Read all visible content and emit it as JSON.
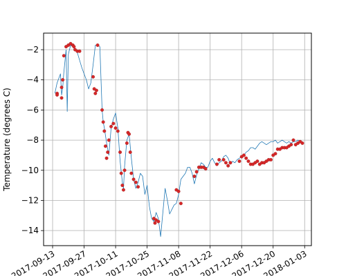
{
  "chart_data": {
    "type": "line",
    "title": "",
    "xlabel": "",
    "ylabel": "Temperature (degrees C)",
    "grid": true,
    "x_ticks": [
      "2017-09-13",
      "2017-09-27",
      "2017-10-11",
      "2017-10-25",
      "2017-11-08",
      "2017-11-22",
      "2017-12-06",
      "2017-12-20",
      "2018-01-03"
    ],
    "xlim": [
      "2017-09-09",
      "2018-01-06"
    ],
    "y_ticks": [
      "−2",
      "−4",
      "−6",
      "−8",
      "−10",
      "−12",
      "−14"
    ],
    "ylim": [
      -15.0,
      -0.9
    ],
    "colors": {
      "line": "#1f77b4",
      "markers": "#d62728"
    },
    "series": [
      {
        "style": "line",
        "x": [
          "2017-09-14",
          "2017-09-15",
          "2017-09-16",
          "2017-09-16T12",
          "2017-09-17",
          "2017-09-17T12",
          "2017-09-18",
          "2017-09-19",
          "2017-09-19T12",
          "2017-09-20",
          "2017-09-21",
          "2017-09-22",
          "2017-09-23",
          "2017-09-24",
          "2017-09-25",
          "2017-09-26",
          "2017-09-27",
          "2017-09-28",
          "2017-09-29",
          "2017-09-30",
          "2017-10-01",
          "2017-10-02",
          "2017-10-03",
          "2017-10-04",
          "2017-10-05",
          "2017-10-05T12",
          "2017-10-06",
          "2017-10-07",
          "2017-10-08",
          "2017-10-09",
          "2017-10-10",
          "2017-10-11",
          "2017-10-12",
          "2017-10-13",
          "2017-10-14",
          "2017-10-14T12",
          "2017-10-15",
          "2017-10-16",
          "2017-10-17",
          "2017-10-18",
          "2017-10-19",
          "2017-10-20",
          "2017-10-21",
          "2017-10-22",
          "2017-10-23",
          "2017-10-24",
          "2017-10-25",
          "2017-10-26",
          "2017-10-27",
          "2017-10-28",
          "2017-10-29",
          "2017-10-30",
          "2017-10-31",
          "2017-11-01",
          "2017-11-02",
          "2017-11-03",
          "2017-11-04",
          "2017-11-05",
          "2017-11-06",
          "2017-11-07",
          "2017-11-08",
          "2017-11-09",
          "2017-11-10",
          "2017-11-11",
          "2017-11-12",
          "2017-11-13",
          "2017-11-14",
          "2017-11-15",
          "2017-11-16",
          "2017-11-17",
          "2017-11-18",
          "2017-11-19",
          "2017-11-20",
          "2017-11-21",
          "2017-11-22",
          "2017-11-23",
          "2017-11-24",
          "2017-11-25",
          "2017-11-26",
          "2017-11-27",
          "2017-11-28",
          "2017-11-29",
          "2017-11-30",
          "2017-12-01",
          "2017-12-02",
          "2017-12-03",
          "2017-12-04",
          "2017-12-05",
          "2017-12-06",
          "2017-12-07",
          "2017-12-08",
          "2017-12-09",
          "2017-12-10",
          "2017-12-11",
          "2017-12-12",
          "2017-12-13",
          "2017-12-14",
          "2017-12-15",
          "2017-12-16",
          "2017-12-17",
          "2017-12-18",
          "2017-12-19",
          "2017-12-20",
          "2017-12-21",
          "2017-12-22",
          "2017-12-23",
          "2017-12-24",
          "2017-12-25",
          "2017-12-26",
          "2017-12-27",
          "2017-12-28",
          "2017-12-29",
          "2017-12-30",
          "2017-12-31",
          "2018-01-01",
          "2018-01-02"
        ],
        "y": [
          -4.9,
          -4.2,
          -3.8,
          -3.6,
          -5.0,
          -4.5,
          -3.5,
          -2.0,
          -6.1,
          -2.3,
          -1.7,
          -1.8,
          -2.0,
          -2.2,
          -2.7,
          -3.2,
          -3.6,
          -4.0,
          -4.6,
          -4.2,
          -3.0,
          -1.7,
          -1.7,
          -1.8,
          -6.0,
          -6.8,
          -7.2,
          -8.2,
          -9.0,
          -7.2,
          -6.6,
          -6.2,
          -7.2,
          -9.4,
          -10.8,
          -11.2,
          -9.7,
          -8.0,
          -7.6,
          -9.2,
          -10.6,
          -11.2,
          -10.8,
          -10.2,
          -10.4,
          -11.6,
          -11.0,
          -12.4,
          -13.2,
          -13.4,
          -12.8,
          -13.2,
          -14.4,
          -12.8,
          -11.2,
          -12.0,
          -12.9,
          -12.6,
          -12.3,
          -12.2,
          -11.6,
          -10.6,
          -10.4,
          -10.2,
          -9.8,
          -9.8,
          -10.2,
          -10.9,
          -10.3,
          -9.9,
          -9.5,
          -9.6,
          -9.8,
          -9.8,
          -9.4,
          -9.2,
          -9.5,
          -9.7,
          -9.5,
          -9.4,
          -9.1,
          -9.0,
          -9.2,
          -9.6,
          -9.4,
          -9.5,
          -9.3,
          -9.2,
          -9.1,
          -9.0,
          -8.8,
          -8.7,
          -8.5,
          -8.5,
          -8.6,
          -8.4,
          -8.2,
          -8.1,
          -8.2,
          -8.3,
          -8.2,
          -8.1,
          -8.1,
          -8.0,
          -8.2,
          -8.1,
          -8.0,
          -8.1,
          -8.2,
          -8.1,
          -8.2,
          -8.1,
          -8.1,
          -8.0,
          -8.1,
          -8.1
        ]
      },
      {
        "style": "markers",
        "x": [
          "2017-09-15",
          "2017-09-15",
          "2017-09-17",
          "2017-09-17",
          "2017-09-17T12",
          "2017-09-18",
          "2017-09-19",
          "2017-09-20",
          "2017-09-21",
          "2017-09-22",
          "2017-09-22T12",
          "2017-09-23",
          "2017-09-24",
          "2017-09-25",
          "2017-10-01",
          "2017-10-01T12",
          "2017-10-02",
          "2017-10-02T12",
          "2017-10-03",
          "2017-10-05",
          "2017-10-05T12",
          "2017-10-06",
          "2017-10-06T12",
          "2017-10-07",
          "2017-10-07T12",
          "2017-10-08",
          "2017-10-09",
          "2017-10-10",
          "2017-10-11",
          "2017-10-12",
          "2017-10-13",
          "2017-10-13T12",
          "2017-10-14",
          "2017-10-14T12",
          "2017-10-15",
          "2017-10-16",
          "2017-10-16T12",
          "2017-10-17",
          "2017-10-17T12",
          "2017-10-18",
          "2017-10-19",
          "2017-10-20",
          "2017-10-21",
          "2017-10-28",
          "2017-10-28T12",
          "2017-10-29",
          "2017-10-30",
          "2017-11-07",
          "2017-11-08",
          "2017-11-09",
          "2017-11-15",
          "2017-11-16",
          "2017-11-17",
          "2017-11-18",
          "2017-11-19",
          "2017-11-20",
          "2017-11-25",
          "2017-11-26",
          "2017-11-28",
          "2017-11-29",
          "2017-11-30",
          "2017-12-01",
          "2017-12-05",
          "2017-12-06",
          "2017-12-07",
          "2017-12-08",
          "2017-12-09",
          "2017-12-10",
          "2017-12-11",
          "2017-12-12",
          "2017-12-13",
          "2017-12-14",
          "2017-12-15",
          "2017-12-16",
          "2017-12-17",
          "2017-12-18",
          "2017-12-19",
          "2017-12-20",
          "2017-12-21",
          "2017-12-22",
          "2017-12-23",
          "2017-12-24",
          "2017-12-25",
          "2017-12-26",
          "2017-12-27",
          "2017-12-28",
          "2017-12-29",
          "2017-12-30",
          "2017-12-31",
          "2018-01-01",
          "2018-01-02"
        ],
        "y": [
          -4.9,
          -5.0,
          -5.2,
          -4.5,
          -4.0,
          -2.4,
          -1.8,
          -1.7,
          -1.6,
          -1.7,
          -1.8,
          -2.0,
          -2.1,
          -2.1,
          -3.8,
          -4.6,
          -4.9,
          -4.7,
          -1.7,
          -6.0,
          -6.8,
          -7.4,
          -8.4,
          -9.2,
          -8.8,
          -8.0,
          -7.1,
          -6.9,
          -7.2,
          -7.4,
          -8.8,
          -10.2,
          -11.0,
          -11.3,
          -10.0,
          -8.2,
          -7.5,
          -7.6,
          -8.8,
          -10.2,
          -10.6,
          -10.8,
          -11.1,
          -13.2,
          -13.5,
          -13.3,
          -13.4,
          -11.3,
          -11.4,
          -12.2,
          -10.4,
          -10.1,
          -9.8,
          -9.8,
          -9.8,
          -9.9,
          -9.6,
          -9.3,
          -9.3,
          -9.5,
          -9.7,
          -9.5,
          -9.4,
          -9.1,
          -9.0,
          -9.2,
          -9.4,
          -9.6,
          -9.6,
          -9.5,
          -9.4,
          -9.6,
          -9.5,
          -9.5,
          -9.4,
          -9.3,
          -9.3,
          -9.0,
          -8.9,
          -8.6,
          -8.6,
          -8.5,
          -8.5,
          -8.5,
          -8.4,
          -8.3,
          -8.0,
          -8.3,
          -8.2,
          -8.1,
          -8.2
        ]
      }
    ]
  }
}
